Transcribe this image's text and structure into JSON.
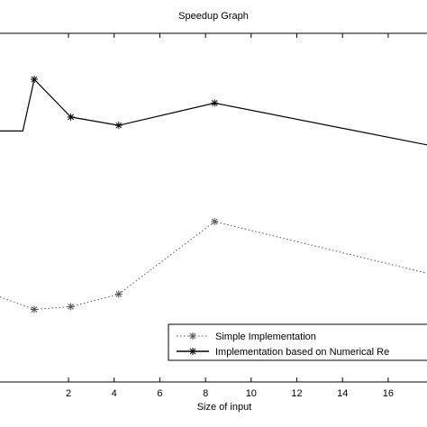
{
  "chart_data": {
    "type": "line",
    "title": "Speedup Graph",
    "xlabel": "Size of input",
    "ylabel": "",
    "xlim": [
      -1,
      17.7
    ],
    "ylim": [
      0,
      25
    ],
    "x_ticks": [
      2,
      4,
      6,
      8,
      10,
      12,
      14,
      16
    ],
    "x_tick_labels": [
      "2",
      "4",
      "6",
      "8",
      "10",
      "12",
      "14",
      "16"
    ],
    "grid": false,
    "legend_position": "bottom-right",
    "series": [
      {
        "name": "Simple Implementation",
        "style": "dotted",
        "marker": "star",
        "color": "#555555",
        "x": [
          -1,
          0.5,
          2.1,
          4.2,
          8.4,
          17.7
        ],
        "y": [
          6.1,
          5.2,
          5.4,
          6.3,
          11.5,
          7.8
        ]
      },
      {
        "name": "Implementation based on Numerical Re",
        "style": "solid",
        "marker": "star",
        "color": "#000000",
        "x": [
          -1,
          0,
          0.5,
          2.1,
          4.2,
          8.4,
          17.7
        ],
        "y": [
          18.0,
          18.0,
          21.7,
          19.0,
          18.4,
          20.0,
          17.0
        ]
      }
    ]
  }
}
